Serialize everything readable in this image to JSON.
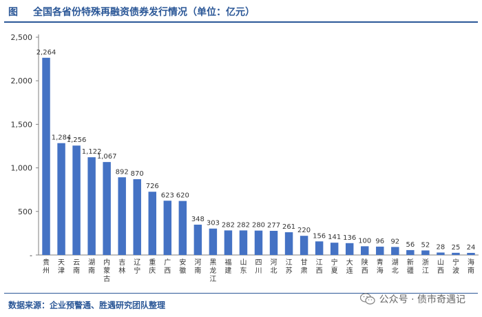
{
  "header": {
    "prefix": "图",
    "title": "全国各省份特殊再融资债券发行情况（单位：亿元）"
  },
  "source": "数据来源：企业预警通、胜遇研究团队整理",
  "watermark": "公众号 · 债市奇遇记",
  "colors": {
    "bar": "#4472c4",
    "accent": "#2b5797",
    "axis": "#7f7f7f",
    "text": "#333333"
  },
  "chart_data": {
    "type": "bar",
    "title": "全国各省份特殊再融资债券发行情况（单位：亿元）",
    "xlabel": "",
    "ylabel": "",
    "ylim": [
      0,
      2500
    ],
    "yticks": [
      "-",
      "500",
      "1,000",
      "1,500",
      "2,000",
      "2,500"
    ],
    "grid": false,
    "categories": [
      "贵州",
      "天津",
      "云南",
      "湖南",
      "内蒙古",
      "吉林",
      "辽宁",
      "重庆",
      "广西",
      "安徽",
      "河南",
      "黑龙江",
      "福建",
      "山东",
      "四川",
      "河北",
      "江苏",
      "甘肃",
      "江西",
      "宁夏",
      "大连",
      "陕西",
      "青海",
      "湖北",
      "新疆",
      "浙江",
      "山西",
      "宁波",
      "海南"
    ],
    "values": [
      2264,
      1284,
      1256,
      1122,
      1067,
      892,
      870,
      726,
      623,
      620,
      348,
      303,
      282,
      282,
      280,
      277,
      261,
      220,
      156,
      141,
      136,
      100,
      96,
      92,
      56,
      52,
      28,
      25,
      24
    ],
    "value_labels": [
      "2,264",
      "1,284",
      "1,256",
      "1,122",
      "1,067",
      "892",
      "870",
      "726",
      "623",
      "620",
      "348",
      "303",
      "282",
      "282",
      "280",
      "277",
      "261",
      "220",
      "156",
      "141",
      "136",
      "100",
      "96",
      "92",
      "56",
      "52",
      "28",
      "25",
      "24"
    ]
  }
}
